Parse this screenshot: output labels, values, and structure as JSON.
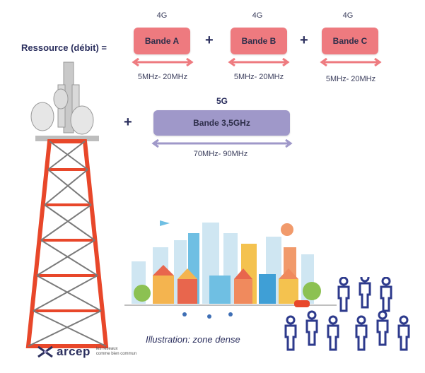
{
  "left_label": "Ressource (débit) =",
  "bands_4g": [
    {
      "tech": "4G",
      "name": "Bande A",
      "range": "5MHz- 20MHz"
    },
    {
      "tech": "4G",
      "name": "Bande B",
      "range": "5MHz- 20MHz"
    },
    {
      "tech": "4G",
      "name": "Bande C",
      "range": "5MHz- 20MHz"
    }
  ],
  "plus": "+",
  "band_5g": {
    "tech": "5G",
    "name": "Bande 3,5GHz",
    "range": "70MHz- 90MHz"
  },
  "caption": "Illustration: zone dense",
  "logo": {
    "name": "arcep",
    "tagline_line1": "les réseaux",
    "tagline_line2": "comme bien commun"
  },
  "colors": {
    "band_4g": "#ee7a7f",
    "band_5g": "#9f98c9",
    "tower_red": "#e8472a",
    "text": "#2b2f5e",
    "people": "#2d3a8c"
  }
}
